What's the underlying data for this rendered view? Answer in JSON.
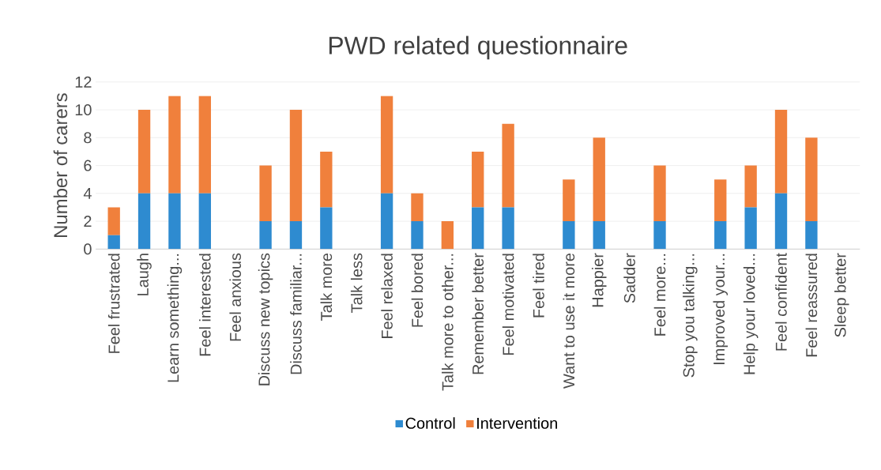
{
  "chart_data": {
    "type": "bar",
    "title": "PWD related questionnaire",
    "ylabel": "Number of carers",
    "categories": [
      "Feel frustrated",
      "Laugh",
      "Learn something...",
      "Feel interested",
      "Feel anxious",
      "Discuss new topics",
      "Discuss familiar...",
      "Talk more",
      "Talk less",
      "Feel relaxed",
      "Feel bored",
      "Talk more to other...",
      "Remember better",
      "Feel motivated",
      "Feel tired",
      "Want to use it more",
      "Happier",
      "Sadder",
      "Feel more...",
      "Stop you talking...",
      "Improved your...",
      "Help your loved...",
      "Feel confident",
      "Feel reassured",
      "Sleep better"
    ],
    "series": [
      {
        "name": "Control",
        "color": "#2e8bd0",
        "values": [
          1,
          4,
          4,
          4,
          0,
          2,
          2,
          3,
          0,
          4,
          2,
          0,
          3,
          3,
          0,
          2,
          2,
          0,
          2,
          0,
          2,
          3,
          4,
          2,
          0
        ]
      },
      {
        "name": "Intervention",
        "color": "#f0803c",
        "values": [
          2,
          6,
          7,
          7,
          0,
          4,
          8,
          4,
          0,
          7,
          2,
          2,
          4,
          6,
          0,
          3,
          6,
          0,
          4,
          0,
          3,
          3,
          6,
          6,
          0
        ]
      }
    ],
    "stacked": true,
    "ylim": [
      0,
      12
    ],
    "yticks": [
      0,
      2,
      4,
      6,
      8,
      10,
      12
    ],
    "grid": "y",
    "legend": "bottom"
  }
}
